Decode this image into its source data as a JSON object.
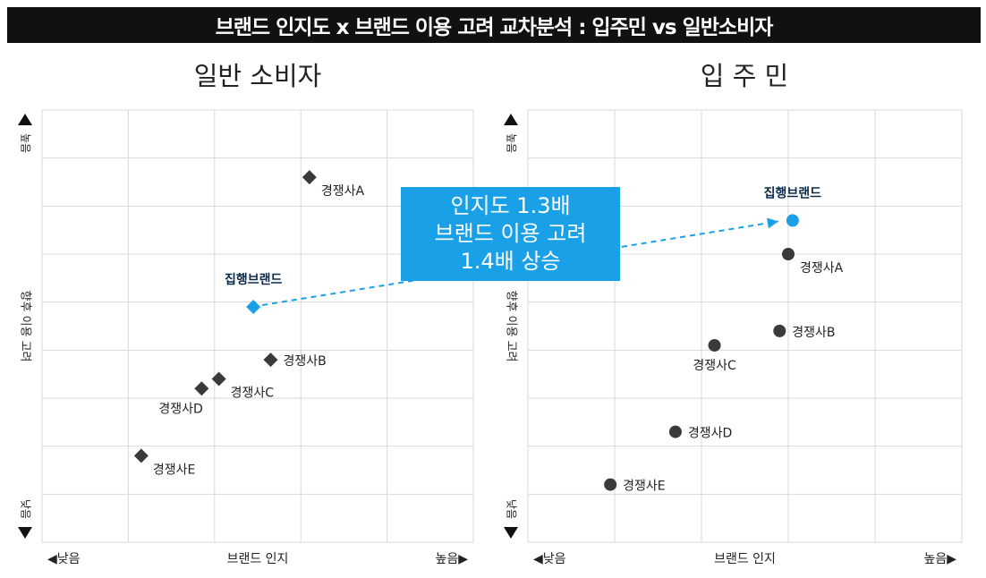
{
  "banner": {
    "title": "브랜드 인지도 x 브랜드 이용 고려 교차분석 : 입주민 vs 일반소비자"
  },
  "callout": {
    "lines": [
      "인지도 1.3배",
      "브랜드 이용 고려",
      "1.4배 상승"
    ]
  },
  "colors": {
    "highlight": "#1aa0e6",
    "competitor": "#3a3a3a",
    "grid": "#d9d9d9",
    "banner": "#111111"
  },
  "chart_data": [
    {
      "type": "scatter",
      "title": "일반 소비자",
      "marker": "diamond",
      "xlabel": "브랜드 인지",
      "ylabel": "향후 이용 고려",
      "x_low": "◀낮음",
      "x_high": "높음▶",
      "y_high": "높음",
      "y_low": "낮음",
      "xlim": [
        0,
        10
      ],
      "ylim": [
        0,
        9
      ],
      "grid": true,
      "points": [
        {
          "name": "경쟁사A",
          "x": 6.2,
          "y": 7.6,
          "label_pos": "below-right"
        },
        {
          "name": "집행브랜드",
          "x": 4.9,
          "y": 4.9,
          "highlight": true,
          "label_pos": "above"
        },
        {
          "name": "경쟁사B",
          "x": 5.3,
          "y": 3.8,
          "label_pos": "right"
        },
        {
          "name": "경쟁사C",
          "x": 4.1,
          "y": 3.4,
          "label_pos": "below-right"
        },
        {
          "name": "경쟁사D",
          "x": 3.7,
          "y": 3.2,
          "label_pos": "below-left"
        },
        {
          "name": "경쟁사E",
          "x": 2.3,
          "y": 1.8,
          "label_pos": "below-right"
        }
      ]
    },
    {
      "type": "scatter",
      "title": "입 주 민",
      "marker": "circle",
      "xlabel": "브랜드 인지",
      "ylabel": "향후 이용 고려",
      "x_low": "◀낮음",
      "x_high": "높음▶",
      "y_high": "높음",
      "y_low": "낮음",
      "xlim": [
        0,
        10
      ],
      "ylim": [
        0,
        9
      ],
      "grid": true,
      "points": [
        {
          "name": "집행브랜드",
          "x": 6.1,
          "y": 6.7,
          "highlight": true,
          "label_pos": "above"
        },
        {
          "name": "경쟁사A",
          "x": 6.0,
          "y": 6.0,
          "label_pos": "below-right"
        },
        {
          "name": "경쟁사B",
          "x": 5.8,
          "y": 4.4,
          "label_pos": "right"
        },
        {
          "name": "경쟁사C",
          "x": 4.3,
          "y": 4.1,
          "label_pos": "below"
        },
        {
          "name": "경쟁사D",
          "x": 3.4,
          "y": 2.3,
          "label_pos": "right"
        },
        {
          "name": "경쟁사E",
          "x": 1.9,
          "y": 1.2,
          "label_pos": "right"
        }
      ]
    }
  ]
}
